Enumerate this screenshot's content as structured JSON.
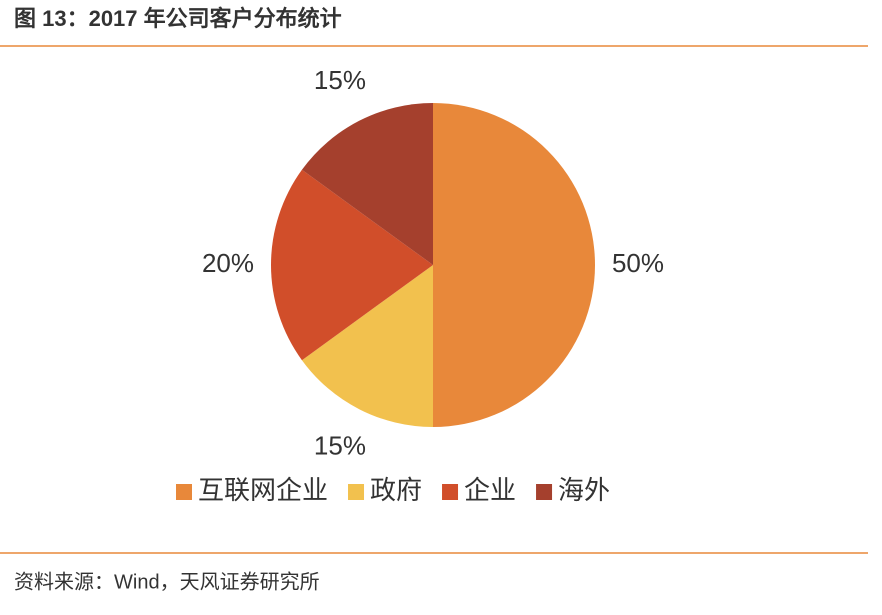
{
  "chart_data": {
    "type": "pie",
    "title": "图 13：2017 年公司客户分布统计",
    "categories": [
      "互联网企业",
      "政府",
      "企业",
      "海外"
    ],
    "values": [
      50,
      15,
      20,
      15
    ],
    "value_labels": [
      "50%",
      "15%",
      "20%",
      "15%"
    ],
    "colors": [
      "#E8883A",
      "#F2C14E",
      "#D14E2A",
      "#A5402D"
    ],
    "legend": "bottom",
    "source": "资料来源：Wind，天风证券研究所"
  }
}
